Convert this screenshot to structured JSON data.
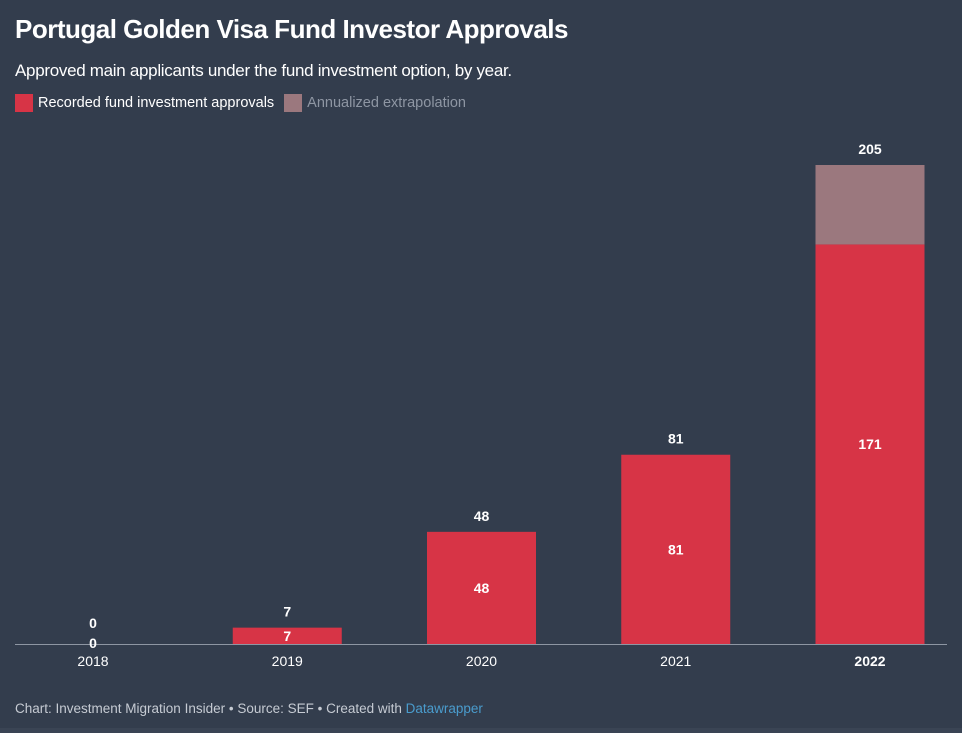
{
  "title": "Portugal Golden Visa Fund Investor Approvals",
  "subtitle": "Approved main applicants under the fund investment option, by year.",
  "legend": [
    {
      "label": "Recorded fund investment approvals",
      "color": "#d73446"
    },
    {
      "label": "Annualized extrapolation",
      "color": "#9b787e"
    }
  ],
  "footer": {
    "prefix": "Chart: Investment Migration Insider • Source: SEF • Created with ",
    "brand": "Datawrapper"
  },
  "colors": {
    "background": "#333d4d",
    "recorded": "#d73446",
    "extrapolated": "#9b787e",
    "axis": "#8e96a3",
    "brand": "#4a9ccd"
  },
  "chart_data": {
    "type": "bar",
    "stacked": true,
    "title": "Portugal Golden Visa Fund Investor Approvals",
    "subtitle": "Approved main applicants under the fund investment option, by year.",
    "categories": [
      "2018",
      "2019",
      "2020",
      "2021",
      "2022"
    ],
    "highlighted_category": "2022",
    "series": [
      {
        "name": "Recorded fund investment approvals",
        "values": [
          0,
          7,
          48,
          81,
          171
        ],
        "color": "#d73446"
      },
      {
        "name": "Annualized extrapolation",
        "values": [
          0,
          0,
          0,
          0,
          34
        ],
        "color": "#9b787e"
      }
    ],
    "totals": [
      0,
      7,
      48,
      81,
      205
    ],
    "xlabel": "",
    "ylabel": "",
    "ylim": [
      0,
      205
    ],
    "grid": false,
    "legend_position": "top-left"
  }
}
